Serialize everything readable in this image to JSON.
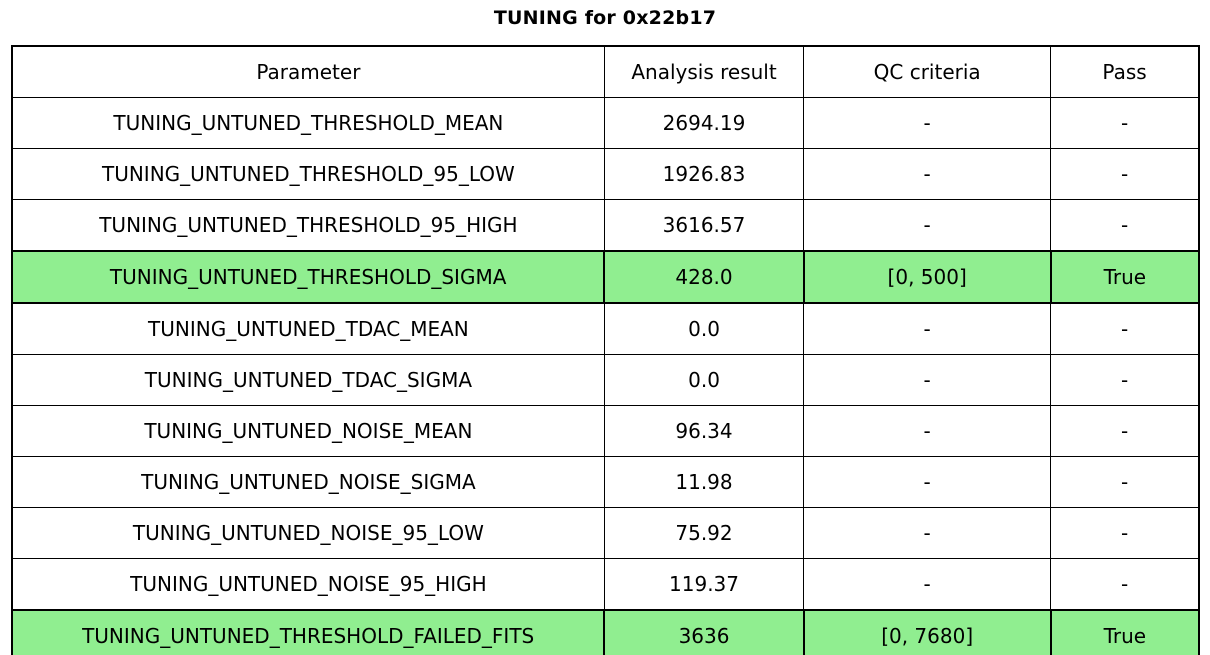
{
  "chart_data": {
    "type": "table",
    "title": "TUNING for 0x22b17",
    "columns": [
      "Parameter",
      "Analysis result",
      "QC criteria",
      "Pass"
    ],
    "rows": [
      {
        "param": "TUNING_UNTUNED_THRESHOLD_MEAN",
        "result": "2694.19",
        "qc": "-",
        "pass": "-",
        "highlight": false
      },
      {
        "param": "TUNING_UNTUNED_THRESHOLD_95_LOW",
        "result": "1926.83",
        "qc": "-",
        "pass": "-",
        "highlight": false
      },
      {
        "param": "TUNING_UNTUNED_THRESHOLD_95_HIGH",
        "result": "3616.57",
        "qc": "-",
        "pass": "-",
        "highlight": false
      },
      {
        "param": "TUNING_UNTUNED_THRESHOLD_SIGMA",
        "result": "428.0",
        "qc": "[0, 500]",
        "pass": "True",
        "highlight": true
      },
      {
        "param": "TUNING_UNTUNED_TDAC_MEAN",
        "result": "0.0",
        "qc": "-",
        "pass": "-",
        "highlight": false
      },
      {
        "param": "TUNING_UNTUNED_TDAC_SIGMA",
        "result": "0.0",
        "qc": "-",
        "pass": "-",
        "highlight": false
      },
      {
        "param": "TUNING_UNTUNED_NOISE_MEAN",
        "result": "96.34",
        "qc": "-",
        "pass": "-",
        "highlight": false
      },
      {
        "param": "TUNING_UNTUNED_NOISE_SIGMA",
        "result": "11.98",
        "qc": "-",
        "pass": "-",
        "highlight": false
      },
      {
        "param": "TUNING_UNTUNED_NOISE_95_LOW",
        "result": "75.92",
        "qc": "-",
        "pass": "-",
        "highlight": false
      },
      {
        "param": "TUNING_UNTUNED_NOISE_95_HIGH",
        "result": "119.37",
        "qc": "-",
        "pass": "-",
        "highlight": false
      },
      {
        "param": "TUNING_UNTUNED_THRESHOLD_FAILED_FITS",
        "result": "3636",
        "qc": "[0, 7680]",
        "pass": "True",
        "highlight": true
      }
    ],
    "highlighted_row_indices": [
      3,
      10
    ],
    "colors": {
      "highlight": "#90EE90",
      "border": "#000000",
      "background": "#ffffff",
      "text": "#000000"
    },
    "layout": {
      "grid": "full-borders",
      "legend": "none"
    }
  }
}
